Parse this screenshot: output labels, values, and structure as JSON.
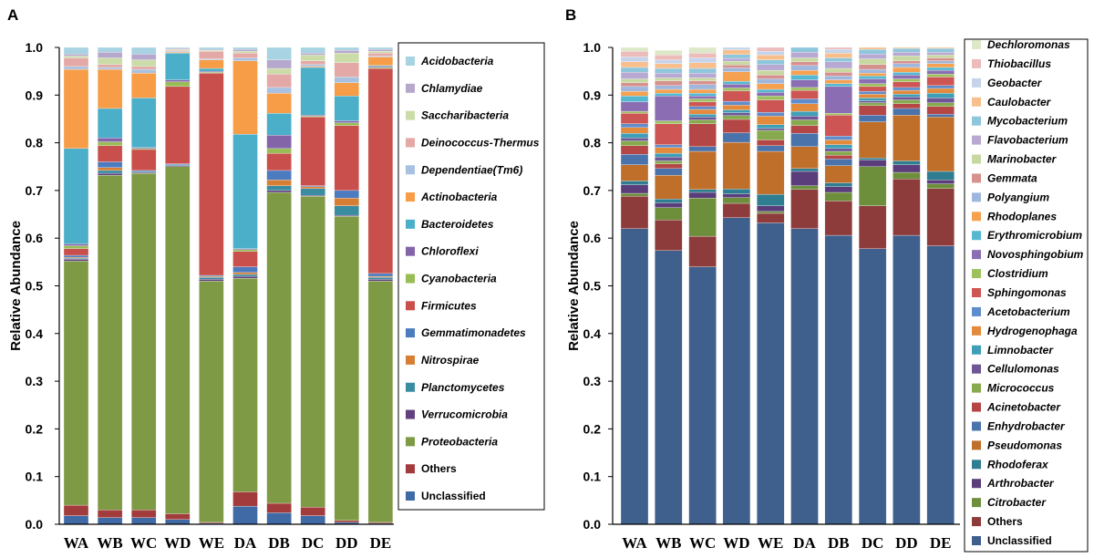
{
  "panels": [
    {
      "label": "A",
      "ylabel": "Relative Abundance",
      "ylim": [
        0,
        1
      ],
      "yticks": [
        "0.0",
        "0.1",
        "0.2",
        "0.3",
        "0.4",
        "0.5",
        "0.6",
        "0.7",
        "0.8",
        "0.9",
        "1.0"
      ]
    },
    {
      "label": "B",
      "ylabel": "Relative Abundance",
      "ylim": [
        0,
        1
      ],
      "yticks": [
        "0.0",
        "0.1",
        "0.2",
        "0.3",
        "0.4",
        "0.5",
        "0.6",
        "0.7",
        "0.8",
        "0.9",
        "1.0"
      ]
    }
  ],
  "chart_data": [
    {
      "type": "bar",
      "stacked": true,
      "title": "A",
      "xlabel": "",
      "ylabel": "Relative Abundance",
      "ylim": [
        0,
        1
      ],
      "categories": [
        "WA",
        "WB",
        "WC",
        "WD",
        "WE",
        "DA",
        "DB",
        "DC",
        "DD",
        "DE"
      ],
      "series": [
        {
          "name": "Unclassified",
          "color": "#3f6aa5",
          "values": [
            0.018,
            0.014,
            0.014,
            0.01,
            0.002,
            0.038,
            0.024,
            0.018,
            0.004,
            0.002
          ]
        },
        {
          "name": "Others",
          "color": "#a23c3c",
          "values": [
            0.022,
            0.016,
            0.016,
            0.012,
            0.002,
            0.03,
            0.02,
            0.018,
            0.004,
            0.002
          ]
        },
        {
          "name": "Proteobacteria",
          "color": "#7f9a45",
          "values": [
            0.512,
            0.702,
            0.706,
            0.728,
            0.506,
            0.448,
            0.652,
            0.652,
            0.638,
            0.506
          ]
        },
        {
          "name": "Verrucomicrobia",
          "color": "#62407f",
          "values": [
            0.004,
            0.004,
            0.002,
            0.002,
            0.004,
            0.004,
            0.004,
            0.002,
            0.002,
            0.004
          ]
        },
        {
          "name": "Planctomycetes",
          "color": "#3a8ca0",
          "values": [
            0.002,
            0.006,
            0.002,
            0.002,
            0.004,
            0.004,
            0.01,
            0.014,
            0.02,
            0.004
          ]
        },
        {
          "name": "Nitrospirae",
          "color": "#d77e35",
          "values": [
            0.002,
            0.006,
            0.0,
            0.0,
            0.002,
            0.004,
            0.012,
            0.004,
            0.016,
            0.002
          ]
        },
        {
          "name": "Gemmatimonadetes",
          "color": "#4c7bc0",
          "values": [
            0.004,
            0.012,
            0.002,
            0.002,
            0.002,
            0.012,
            0.02,
            0.002,
            0.016,
            0.006
          ]
        },
        {
          "name": "Firmicutes",
          "color": "#c94f4c",
          "values": [
            0.014,
            0.034,
            0.044,
            0.162,
            0.424,
            0.032,
            0.036,
            0.144,
            0.136,
            0.43
          ]
        },
        {
          "name": "Cyanobacteria",
          "color": "#98bd55",
          "values": [
            0.006,
            0.008,
            0.002,
            0.01,
            0.002,
            0.004,
            0.01,
            0.002,
            0.006,
            0.002
          ]
        },
        {
          "name": "Chloroflexi",
          "color": "#8364a8",
          "values": [
            0.004,
            0.008,
            0.002,
            0.004,
            0.002,
            0.002,
            0.028,
            0.002,
            0.004,
            0.002
          ]
        },
        {
          "name": "Bacteroidetes",
          "color": "#4bafc9",
          "values": [
            0.2,
            0.062,
            0.104,
            0.056,
            0.006,
            0.24,
            0.046,
            0.1,
            0.052,
            0.002
          ]
        },
        {
          "name": "Actinobacteria",
          "color": "#f79c47",
          "values": [
            0.166,
            0.082,
            0.052,
            0.002,
            0.018,
            0.154,
            0.042,
            0.002,
            0.028,
            0.018
          ]
        },
        {
          "name": "Dependentiae(Tm6)",
          "color": "#a8c1e0",
          "values": [
            0.006,
            0.004,
            0.008,
            0.002,
            0.002,
            0.006,
            0.012,
            0.004,
            0.012,
            0.002
          ]
        },
        {
          "name": "Deinococcus-Thermus",
          "color": "#e4a8a6",
          "values": [
            0.018,
            0.006,
            0.006,
            0.002,
            0.016,
            0.01,
            0.028,
            0.008,
            0.03,
            0.006
          ]
        },
        {
          "name": "Saccharibacteria",
          "color": "#cbdca9",
          "values": [
            0.004,
            0.014,
            0.014,
            0.002,
            0.002,
            0.004,
            0.012,
            0.012,
            0.02,
            0.004
          ]
        },
        {
          "name": "Chlamydiae",
          "color": "#b6a8cc",
          "values": [
            0.004,
            0.012,
            0.012,
            0.002,
            0.002,
            0.004,
            0.018,
            0.004,
            0.006,
            0.004
          ]
        },
        {
          "name": "Acidobacteria",
          "color": "#a8d3e2",
          "values": [
            0.014,
            0.01,
            0.014,
            0.004,
            0.004,
            0.01,
            0.026,
            0.012,
            0.006,
            0.004
          ]
        }
      ]
    },
    {
      "type": "bar",
      "stacked": true,
      "title": "B",
      "xlabel": "",
      "ylabel": "Relative Abundance",
      "ylim": [
        0,
        1
      ],
      "categories": [
        "WA",
        "WB",
        "WC",
        "WD",
        "WE",
        "DA",
        "DB",
        "DC",
        "DD",
        "DE"
      ],
      "series": [
        {
          "name": "Unclassified",
          "color": "#3f5f8c",
          "values": [
            0.62,
            0.574,
            0.54,
            0.643,
            0.632,
            0.62,
            0.606,
            0.578,
            0.606,
            0.584
          ]
        },
        {
          "name": "Others",
          "color": "#8e3b3b",
          "values": [
            0.068,
            0.064,
            0.064,
            0.03,
            0.02,
            0.082,
            0.072,
            0.09,
            0.118,
            0.12
          ]
        },
        {
          "name": "Citrobacter",
          "color": "#6d8f3c",
          "values": [
            0.006,
            0.026,
            0.08,
            0.012,
            0.004,
            0.008,
            0.018,
            0.082,
            0.014,
            0.01
          ]
        },
        {
          "name": "Arthrobacter",
          "color": "#5a3d7a",
          "values": [
            0.018,
            0.01,
            0.012,
            0.008,
            0.012,
            0.03,
            0.012,
            0.014,
            0.016,
            0.008
          ]
        },
        {
          "name": "Rhodoferax",
          "color": "#2f7d90",
          "values": [
            0.008,
            0.008,
            0.006,
            0.01,
            0.024,
            0.006,
            0.008,
            0.004,
            0.008,
            0.018
          ]
        },
        {
          "name": "Pseudomonas",
          "color": "#c06f2b",
          "values": [
            0.034,
            0.05,
            0.08,
            0.098,
            0.09,
            0.046,
            0.036,
            0.076,
            0.096,
            0.114
          ]
        },
        {
          "name": "Enhydrobacter",
          "color": "#4a72ab",
          "values": [
            0.022,
            0.014,
            0.01,
            0.02,
            0.012,
            0.028,
            0.014,
            0.014,
            0.014,
            0.006
          ]
        },
        {
          "name": "Acinetobacter",
          "color": "#b44645",
          "values": [
            0.018,
            0.01,
            0.048,
            0.028,
            0.012,
            0.016,
            0.008,
            0.02,
            0.01,
            0.016
          ]
        },
        {
          "name": "Micrococcus",
          "color": "#86aa4d",
          "values": [
            0.01,
            0.006,
            0.008,
            0.008,
            0.02,
            0.012,
            0.008,
            0.006,
            0.008,
            0.008
          ]
        },
        {
          "name": "Cellulomonas",
          "color": "#6e5595",
          "values": [
            0.006,
            0.008,
            0.006,
            0.006,
            0.004,
            0.008,
            0.006,
            0.004,
            0.006,
            0.01
          ]
        },
        {
          "name": "Limnobacter",
          "color": "#3f9fb6",
          "values": [
            0.01,
            0.008,
            0.006,
            0.006,
            0.008,
            0.01,
            0.008,
            0.006,
            0.006,
            0.01
          ]
        },
        {
          "name": "Hydrogenophaga",
          "color": "#e38a3c",
          "values": [
            0.012,
            0.012,
            0.01,
            0.01,
            0.018,
            0.016,
            0.01,
            0.008,
            0.008,
            0.01
          ]
        },
        {
          "name": "Acetobacterium",
          "color": "#5f8ccb",
          "values": [
            0.008,
            0.006,
            0.006,
            0.008,
            0.008,
            0.01,
            0.008,
            0.006,
            0.006,
            0.006
          ]
        },
        {
          "name": "Sphingomonas",
          "color": "#cd5553",
          "values": [
            0.022,
            0.044,
            0.01,
            0.022,
            0.026,
            0.018,
            0.044,
            0.01,
            0.012,
            0.018
          ]
        },
        {
          "name": "Clostridium",
          "color": "#9dc15f",
          "values": [
            0.004,
            0.006,
            0.006,
            0.006,
            0.008,
            0.006,
            0.004,
            0.006,
            0.006,
            0.006
          ]
        },
        {
          "name": "Novosphingobium",
          "color": "#8a6db2",
          "values": [
            0.02,
            0.052,
            0.006,
            0.008,
            0.008,
            0.016,
            0.056,
            0.01,
            0.008,
            0.008
          ]
        },
        {
          "name": "Erythromicrobium",
          "color": "#55b8d0",
          "values": [
            0.012,
            0.006,
            0.006,
            0.006,
            0.006,
            0.01,
            0.006,
            0.006,
            0.006,
            0.006
          ]
        },
        {
          "name": "Rhodoplanes",
          "color": "#f5a150",
          "values": [
            0.01,
            0.008,
            0.008,
            0.02,
            0.012,
            0.01,
            0.008,
            0.006,
            0.01,
            0.008
          ]
        },
        {
          "name": "Polyangium",
          "color": "#9fb7dc",
          "values": [
            0.01,
            0.008,
            0.01,
            0.008,
            0.01,
            0.01,
            0.008,
            0.008,
            0.008,
            0.006
          ]
        },
        {
          "name": "Gemmata",
          "color": "#d6918e",
          "values": [
            0.008,
            0.01,
            0.008,
            0.006,
            0.008,
            0.008,
            0.008,
            0.01,
            0.006,
            0.006
          ]
        },
        {
          "name": "Marinobacter",
          "color": "#c7d9a0",
          "values": [
            0.008,
            0.006,
            0.006,
            0.008,
            0.01,
            0.008,
            0.008,
            0.012,
            0.01,
            0.006
          ]
        },
        {
          "name": "Flavobacterium",
          "color": "#b8a9d2",
          "values": [
            0.014,
            0.01,
            0.01,
            0.006,
            0.012,
            0.012,
            0.014,
            0.01,
            0.008,
            0.006
          ]
        },
        {
          "name": "Mycobacterium",
          "color": "#8ec6dc",
          "values": [
            0.01,
            0.01,
            0.01,
            0.008,
            0.01,
            0.01,
            0.008,
            0.01,
            0.008,
            0.008
          ]
        },
        {
          "name": "Caulobacter",
          "color": "#f8bf8d",
          "values": [
            0.012,
            0.01,
            0.012,
            0.01,
            0.01,
            0.008,
            0.01,
            0.008,
            0.01,
            0.008
          ]
        },
        {
          "name": "Geobacter",
          "color": "#c5d4ea",
          "values": [
            0.01,
            0.008,
            0.01,
            0.008,
            0.008,
            0.01,
            0.008,
            0.01,
            0.008,
            0.008
          ]
        },
        {
          "name": "Thiobacillus",
          "color": "#ecbcbb",
          "values": [
            0.012,
            0.01,
            0.01,
            0.008,
            0.008,
            0.01,
            0.008,
            0.008,
            0.008,
            0.008
          ]
        },
        {
          "name": "Dechloromonas",
          "color": "#dde8c8",
          "values": [
            0.008,
            0.01,
            0.014,
            0.012,
            0.02,
            0.01,
            0.01,
            0.014,
            0.012,
            0.01
          ]
        }
      ]
    }
  ]
}
